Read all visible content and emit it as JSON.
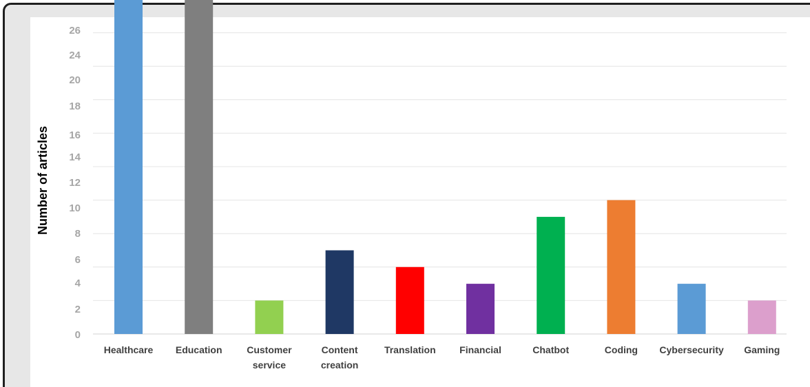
{
  "chart_data": {
    "type": "bar",
    "title": "",
    "xlabel": "",
    "ylabel": "Number of articles",
    "categories": [
      [
        "Healthcare"
      ],
      [
        "Education"
      ],
      [
        "Customer",
        "service"
      ],
      [
        "Content",
        "creation"
      ],
      [
        "Translation"
      ],
      [
        "Financial"
      ],
      [
        "Chatbot"
      ],
      [
        "Coding"
      ],
      [
        "Cybersecurity"
      ],
      [
        "Gaming"
      ]
    ],
    "values": [
      24,
      22,
      2,
      5,
      4,
      3,
      7,
      8,
      3,
      2
    ],
    "colors": [
      "#5b9bd5",
      "#7f7f7f",
      "#92d050",
      "#1f3864",
      "#ff0000",
      "#7030a0",
      "#00b050",
      "#ed7d31",
      "#5b9bd5",
      "#dc9fcc"
    ],
    "y_tick_labels": [
      "0",
      "2",
      "4",
      "6",
      "8",
      "10",
      "12",
      "14",
      "16",
      "18",
      "20",
      "24",
      "26"
    ],
    "ylim": [
      0,
      24
    ],
    "grid": true,
    "legend": "none"
  }
}
